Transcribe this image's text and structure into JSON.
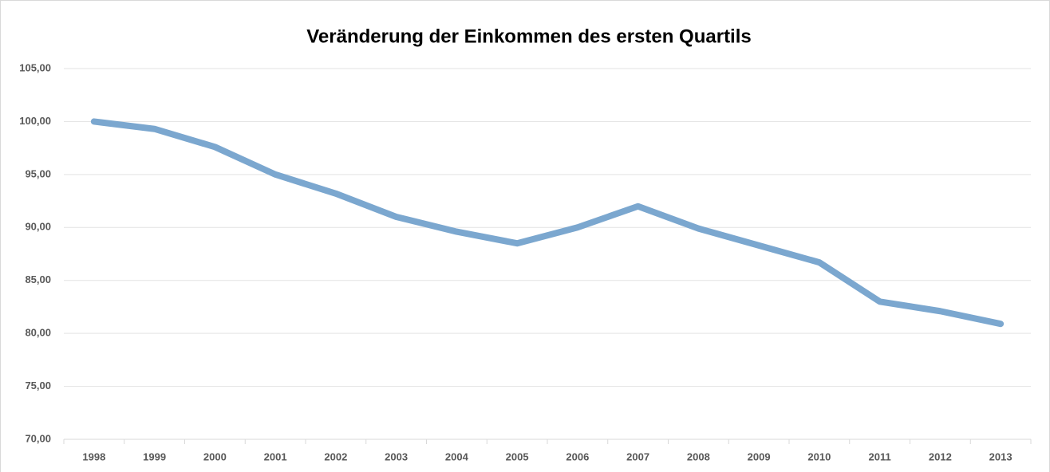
{
  "chart_data": {
    "type": "line",
    "title": "Veränderung der Einkommen des ersten Quartils",
    "categories": [
      "1998",
      "1999",
      "2000",
      "2001",
      "2002",
      "2003",
      "2004",
      "2005",
      "2006",
      "2007",
      "2008",
      "2009",
      "2010",
      "2011",
      "2012",
      "2013"
    ],
    "values": [
      100.0,
      99.3,
      97.6,
      95.0,
      93.2,
      91.0,
      89.6,
      88.5,
      90.0,
      92.0,
      89.9,
      88.3,
      86.7,
      83.0,
      82.1,
      80.9
    ],
    "color": "#7ba7cf",
    "ylim": [
      70,
      105
    ],
    "yticks": [
      {
        "value": 70,
        "label": "70,00"
      },
      {
        "value": 75,
        "label": "75,00"
      },
      {
        "value": 80,
        "label": "80,00"
      },
      {
        "value": 85,
        "label": "85,00"
      },
      {
        "value": 90,
        "label": "90,00"
      },
      {
        "value": 95,
        "label": "95,00"
      },
      {
        "value": 100,
        "label": "100,00"
      },
      {
        "value": 105,
        "label": "105,00"
      }
    ],
    "grid": true
  }
}
